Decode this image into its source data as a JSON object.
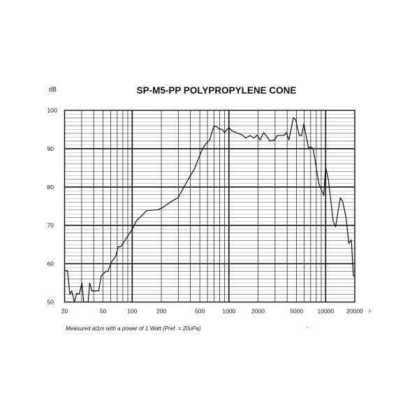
{
  "chart_data": {
    "type": "line",
    "title": "SP-M5-PP POLYPROPYLENE CONE",
    "ylabel": "dB",
    "xlabel": "⊦",
    "x_scale": "log",
    "xlim": [
      20,
      20000
    ],
    "ylim": [
      50,
      100
    ],
    "grid": true,
    "x_ticks": [
      20,
      50,
      100,
      200,
      500,
      1000,
      2000,
      5000,
      10000,
      20000
    ],
    "x_tick_labels": [
      "20",
      "50",
      "100",
      "200",
      "500",
      "1000",
      "2000",
      "5000",
      "10000",
      "20000"
    ],
    "y_ticks": [
      50,
      60,
      70,
      80,
      90,
      100
    ],
    "y_tick_labels": [
      "50",
      "60",
      "70",
      "80",
      "90",
      "100"
    ],
    "line_color": "#111111",
    "series": [
      {
        "x": [
          20,
          21.4,
          22.7,
          23.7,
          25.3,
          26.7,
          28.3,
          30.2,
          31.5,
          33,
          35,
          36.3,
          38.3,
          45,
          47.8,
          53.4,
          56,
          61.4,
          67.8,
          71.7,
          76.6,
          100,
          110,
          141,
          186,
          208,
          252,
          298,
          362,
          439,
          532,
          596,
          630,
          698,
          744,
          787,
          853,
          901,
          1000,
          1070,
          1185,
          1370,
          1490,
          1660,
          1805,
          1960,
          2100,
          2285,
          2530,
          2650,
          2980,
          3160,
          3730,
          3920,
          4180,
          4640,
          4910,
          5330,
          5630,
          5950,
          6650,
          7030,
          7420,
          8530,
          9560,
          10000,
          10660,
          11960,
          12660,
          14180,
          15010,
          16180,
          17400,
          18430,
          19380,
          20000
        ],
        "y": [
          58.2,
          58.2,
          52,
          52.9,
          50,
          52.3,
          52,
          55,
          50,
          48,
          48,
          55,
          52.9,
          52.9,
          56.8,
          58,
          58,
          60.5,
          62,
          64.4,
          64.5,
          69,
          71.1,
          73.8,
          74.1,
          74.7,
          76.2,
          77.2,
          81.1,
          84.7,
          89.9,
          91.7,
          92.2,
          95.8,
          95.8,
          95.2,
          95,
          94.2,
          95.5,
          94.7,
          94.2,
          93.6,
          92.8,
          93.4,
          92.8,
          93.5,
          92.3,
          94.2,
          92.8,
          92,
          92.3,
          93.4,
          93.5,
          94.2,
          92.3,
          98.1,
          97.5,
          93.5,
          93.4,
          96.5,
          90.2,
          90.5,
          90,
          80.8,
          77.8,
          85.3,
          82,
          71.1,
          69.6,
          77.2,
          76.2,
          72.3,
          65.3,
          66.2,
          56.8,
          56.8
        ]
      }
    ]
  },
  "footnote": "Measured at1m with a power of 1 Watt (Pref. = 20uPa)",
  "stray_mark": "-"
}
